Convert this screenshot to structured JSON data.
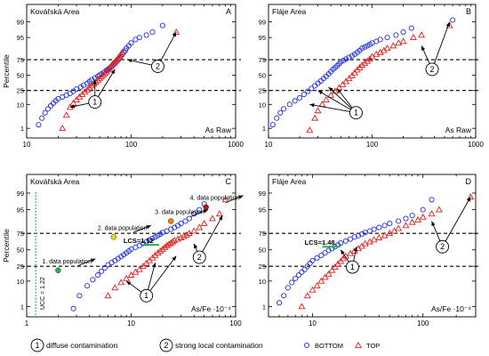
{
  "colors": {
    "bottom": "#1f2fd6",
    "top": "#e0201b",
    "ucc": "#22b14c",
    "lcs": "#22b14c",
    "text": "#000000"
  },
  "legend": {
    "items": [
      {
        "kind": "circled-number",
        "number": "1",
        "label": "diffuse contamination"
      },
      {
        "kind": "circled-number",
        "number": "2",
        "label": "strong local contamination"
      },
      {
        "kind": "marker",
        "marker": "circle",
        "color": "#1f2fd6",
        "label": "BOTTOM"
      },
      {
        "kind": "marker",
        "marker": "triangle",
        "color": "#e0201b",
        "label": "TOP"
      }
    ]
  },
  "chart_data": [
    {
      "type": "scatter",
      "panel": "A",
      "title": "Kovářská Area",
      "corner_label": "As Raw",
      "ylabel": "Percentile",
      "xlabel": "",
      "xscale": "log",
      "xlim": [
        10,
        1000
      ],
      "yscale": "probability",
      "ylim": [
        0.3,
        99.9
      ],
      "x_tick_labels": [
        "10",
        "100",
        "1000"
      ],
      "y_tick_labels": [
        "1",
        "10",
        "25",
        "50",
        "75",
        "95",
        "99"
      ],
      "dashed_lines_at_percentile": [
        25,
        75
      ],
      "annotations": [
        {
          "text": "1",
          "x": 45,
          "y": 12,
          "arrows_to": [
            [
              26,
              8
            ],
            [
              45,
              42
            ],
            [
              70,
              60
            ]
          ]
        },
        {
          "text": "2",
          "x": 180,
          "y": 65,
          "arrows_to": [
            [
              92,
              75
            ],
            [
              270,
              97
            ]
          ]
        }
      ],
      "series": [
        {
          "name": "BOTTOM",
          "marker": "circle",
          "x": [
            13,
            14,
            15,
            16,
            17,
            18,
            19,
            20,
            22,
            24,
            26,
            28,
            30,
            33,
            35,
            38,
            40,
            42,
            45,
            48,
            50,
            52,
            55,
            58,
            60,
            62,
            64,
            66,
            68,
            70,
            72,
            74,
            76,
            78,
            80,
            82,
            85,
            88,
            90,
            95,
            100,
            110,
            120,
            140,
            160,
            200
          ],
          "y": [
            1.5,
            3,
            5,
            7,
            9,
            11,
            13,
            15,
            17,
            19,
            21,
            24,
            27,
            30,
            33,
            36,
            39,
            42,
            45,
            48,
            50,
            52,
            55,
            58,
            60,
            62,
            64,
            66,
            68,
            70,
            72,
            74,
            76,
            78,
            80,
            82,
            84,
            86,
            88,
            90,
            92,
            94,
            95,
            96,
            97,
            98.5
          ]
        },
        {
          "name": "TOP",
          "marker": "triangle",
          "x": [
            22,
            24,
            26,
            28,
            30,
            32,
            34,
            36,
            38,
            40,
            42,
            44,
            46,
            48,
            50,
            52,
            54,
            56,
            58,
            60,
            62,
            64,
            66,
            68,
            70,
            72,
            74,
            76,
            78,
            80,
            82,
            270
          ],
          "y": [
            1,
            4,
            8,
            11,
            14,
            17,
            20,
            23,
            26,
            29,
            32,
            35,
            38,
            41,
            44,
            47,
            50,
            53,
            56,
            59,
            62,
            65,
            68,
            70,
            72,
            74,
            76,
            78,
            80,
            82,
            84,
            97
          ]
        }
      ]
    },
    {
      "type": "scatter",
      "panel": "B",
      "title": "Fláje Area",
      "corner_label": "As Raw",
      "ylabel": "",
      "xlabel": "",
      "xscale": "log",
      "xlim": [
        10,
        1000
      ],
      "yscale": "probability",
      "ylim": [
        0.3,
        99.9
      ],
      "x_tick_labels": [
        "10",
        "100",
        "1000"
      ],
      "y_tick_labels": [
        "1",
        "10",
        "25",
        "50",
        "75",
        "95",
        "99"
      ],
      "dashed_lines_at_percentile": [
        25,
        75
      ],
      "annotations": [
        {
          "text": "1",
          "x": 70,
          "y": 5,
          "arrows_to": [
            [
              25,
              10
            ],
            [
              30,
              25
            ],
            [
              38,
              30
            ],
            [
              46,
              28
            ]
          ]
        },
        {
          "text": "2",
          "x": 380,
          "y": 60,
          "arrows_to": [
            [
              300,
              90
            ],
            [
              560,
              99
            ]
          ]
        }
      ],
      "series": [
        {
          "name": "BOTTOM",
          "marker": "circle",
          "x": [
            11,
            12,
            13,
            14,
            16,
            18,
            20,
            22,
            24,
            26,
            28,
            30,
            32,
            34,
            36,
            38,
            40,
            42,
            44,
            46,
            48,
            50,
            53,
            56,
            60,
            64,
            68,
            72,
            76,
            80,
            85,
            90,
            95,
            100,
            110,
            120,
            140,
            170,
            200,
            240,
            600
          ],
          "y": [
            1.5,
            3,
            5,
            7,
            10,
            13,
            16,
            20,
            24,
            28,
            32,
            36,
            40,
            44,
            48,
            52,
            56,
            60,
            63,
            66,
            69,
            72,
            74,
            76,
            78,
            80,
            82,
            84,
            86,
            88,
            89,
            90,
            91,
            92,
            93,
            94,
            95,
            96,
            97,
            98,
            99.2
          ]
        },
        {
          "name": "TOP",
          "marker": "triangle",
          "x": [
            25,
            28,
            30,
            33,
            36,
            40,
            44,
            48,
            52,
            56,
            60,
            64,
            68,
            72,
            76,
            80,
            85,
            90,
            95,
            100,
            110,
            120,
            130,
            140,
            160,
            180,
            200,
            250,
            300,
            560
          ],
          "y": [
            0.8,
            3,
            6,
            10,
            14,
            19,
            24,
            29,
            34,
            39,
            44,
            49,
            54,
            59,
            63,
            67,
            70,
            73,
            76,
            79,
            82,
            84,
            86,
            88,
            90,
            92,
            93,
            95,
            96,
            98.5
          ]
        }
      ]
    },
    {
      "type": "scatter",
      "panel": "C",
      "title": "Kovářská Area",
      "corner_label": "As/Fe ·10⁻⁴",
      "ylabel": "Percentile",
      "xlabel": "",
      "xscale": "log",
      "xlim": [
        1,
        100
      ],
      "yscale": "probability",
      "ylim": [
        0.3,
        99.9
      ],
      "x_tick_labels": [
        "1",
        "10",
        "100"
      ],
      "y_tick_labels": [
        "1",
        "10",
        "25",
        "50",
        "75",
        "95",
        "99"
      ],
      "dashed_lines_at_percentile": [
        25,
        75
      ],
      "ucc": {
        "label": "UCC = 1.22",
        "x": 1.22
      },
      "lcs": {
        "label": "LCS=1.52",
        "x": 15.2,
        "y": 58
      },
      "populations": [
        {
          "label": "1. data population",
          "x": 2.0,
          "y": 20,
          "dot_color": "#22b14c"
        },
        {
          "label": "2. data population",
          "x": 6.8,
          "y": 70,
          "dot_color": "#e0e000"
        },
        {
          "label": "3. data population",
          "x": 24,
          "y": 88,
          "dot_color": "#f07f10"
        },
        {
          "label": "4. data population",
          "x": 52,
          "y": 96,
          "dot_color": "#c01010"
        }
      ],
      "annotations": [
        {
          "text": "1",
          "x": 14,
          "y": 3,
          "arrows_to": [
            [
              9,
              10
            ],
            [
              17,
              30
            ],
            [
              27,
              40
            ]
          ]
        },
        {
          "text": "2",
          "x": 45,
          "y": 38,
          "arrows_to": [
            [
              40,
              60
            ],
            [
              75,
              92
            ]
          ]
        }
      ],
      "series": [
        {
          "name": "BOTTOM",
          "marker": "circle",
          "x": [
            2.8,
            3.2,
            3.8,
            4.3,
            4.8,
            5.2,
            5.6,
            6.0,
            6.5,
            7.0,
            7.5,
            8.0,
            8.5,
            9.0,
            9.5,
            10,
            11,
            12,
            13,
            14,
            15,
            16,
            17,
            18,
            19,
            20,
            22,
            24,
            26,
            28,
            30,
            33,
            36,
            40,
            45,
            50
          ],
          "y": [
            0.8,
            3,
            7,
            11,
            15,
            19,
            23,
            27,
            30,
            33,
            36,
            39,
            42,
            45,
            48,
            51,
            54,
            57,
            60,
            63,
            66,
            68,
            70,
            72,
            74,
            76,
            78,
            80,
            82,
            84,
            86,
            88,
            90,
            93,
            95,
            97
          ]
        },
        {
          "name": "TOP",
          "marker": "triangle",
          "x": [
            6,
            7,
            8,
            9,
            10,
            11,
            12,
            13,
            14,
            15,
            16,
            17,
            18,
            19,
            20,
            21,
            22,
            23,
            24,
            25,
            26,
            28,
            30,
            32,
            34,
            36,
            40,
            45,
            50,
            60,
            70,
            80
          ],
          "y": [
            3,
            6,
            9,
            12,
            15,
            18,
            21,
            25,
            29,
            33,
            37,
            41,
            45,
            48,
            51,
            54,
            57,
            59,
            61,
            63,
            65,
            67,
            69,
            71,
            73,
            75,
            78,
            82,
            86,
            90,
            93,
            98
          ]
        }
      ]
    },
    {
      "type": "scatter",
      "panel": "D",
      "title": "Fláje Area",
      "corner_label": "As/Fe ·10⁻⁴",
      "ylabel": "",
      "xlabel": "",
      "xscale": "log",
      "xlim": [
        4,
        300
      ],
      "yscale": "probability",
      "ylim": [
        0.3,
        99.9
      ],
      "x_tick_labels": [
        "10",
        "100"
      ],
      "y_tick_labels": [
        "1",
        "10",
        "25",
        "50",
        "75",
        "95",
        "99"
      ],
      "dashed_lines_at_percentile": [
        25,
        75
      ],
      "lcs": {
        "label": "LCS=1.48",
        "x": 14.8,
        "y": 55
      },
      "annotations": [
        {
          "text": "1",
          "x": 23,
          "y": 24,
          "arrows_to": [
            [
              18,
              50
            ],
            [
              25,
              55
            ]
          ]
        },
        {
          "text": "2",
          "x": 150,
          "y": 55,
          "arrows_to": [
            [
              120,
              88
            ],
            [
              270,
              98.5
            ]
          ]
        }
      ],
      "series": [
        {
          "name": "BOTTOM",
          "marker": "circle",
          "x": [
            5,
            5.5,
            6,
            6.5,
            7,
            7.5,
            8,
            8.5,
            9,
            9.5,
            10,
            11,
            12,
            13,
            14,
            15,
            16,
            17,
            18,
            20,
            22,
            24,
            26,
            28,
            30,
            33,
            36,
            40,
            45,
            50,
            60,
            70,
            80,
            100,
            120
          ],
          "y": [
            1.5,
            3,
            6,
            9,
            12,
            15,
            18,
            21,
            25,
            29,
            33,
            37,
            41,
            45,
            49,
            52,
            55,
            58,
            61,
            64,
            67,
            70,
            72,
            74,
            76,
            78,
            80,
            82,
            84,
            86,
            88,
            90,
            92,
            95,
            98
          ]
        },
        {
          "name": "TOP",
          "marker": "triangle",
          "x": [
            8,
            9,
            10,
            11,
            12,
            13,
            14,
            15,
            16,
            17,
            18,
            19,
            20,
            22,
            24,
            26,
            28,
            30,
            33,
            36,
            40,
            45,
            50,
            55,
            60,
            70,
            80,
            90,
            100,
            120,
            140,
            270
          ],
          "y": [
            1,
            3,
            5,
            7,
            10,
            13,
            16,
            20,
            24,
            28,
            32,
            36,
            40,
            44,
            48,
            52,
            56,
            60,
            63,
            66,
            69,
            72,
            75,
            78,
            81,
            84,
            87,
            89,
            91,
            93,
            95,
            98.5
          ]
        }
      ]
    }
  ]
}
